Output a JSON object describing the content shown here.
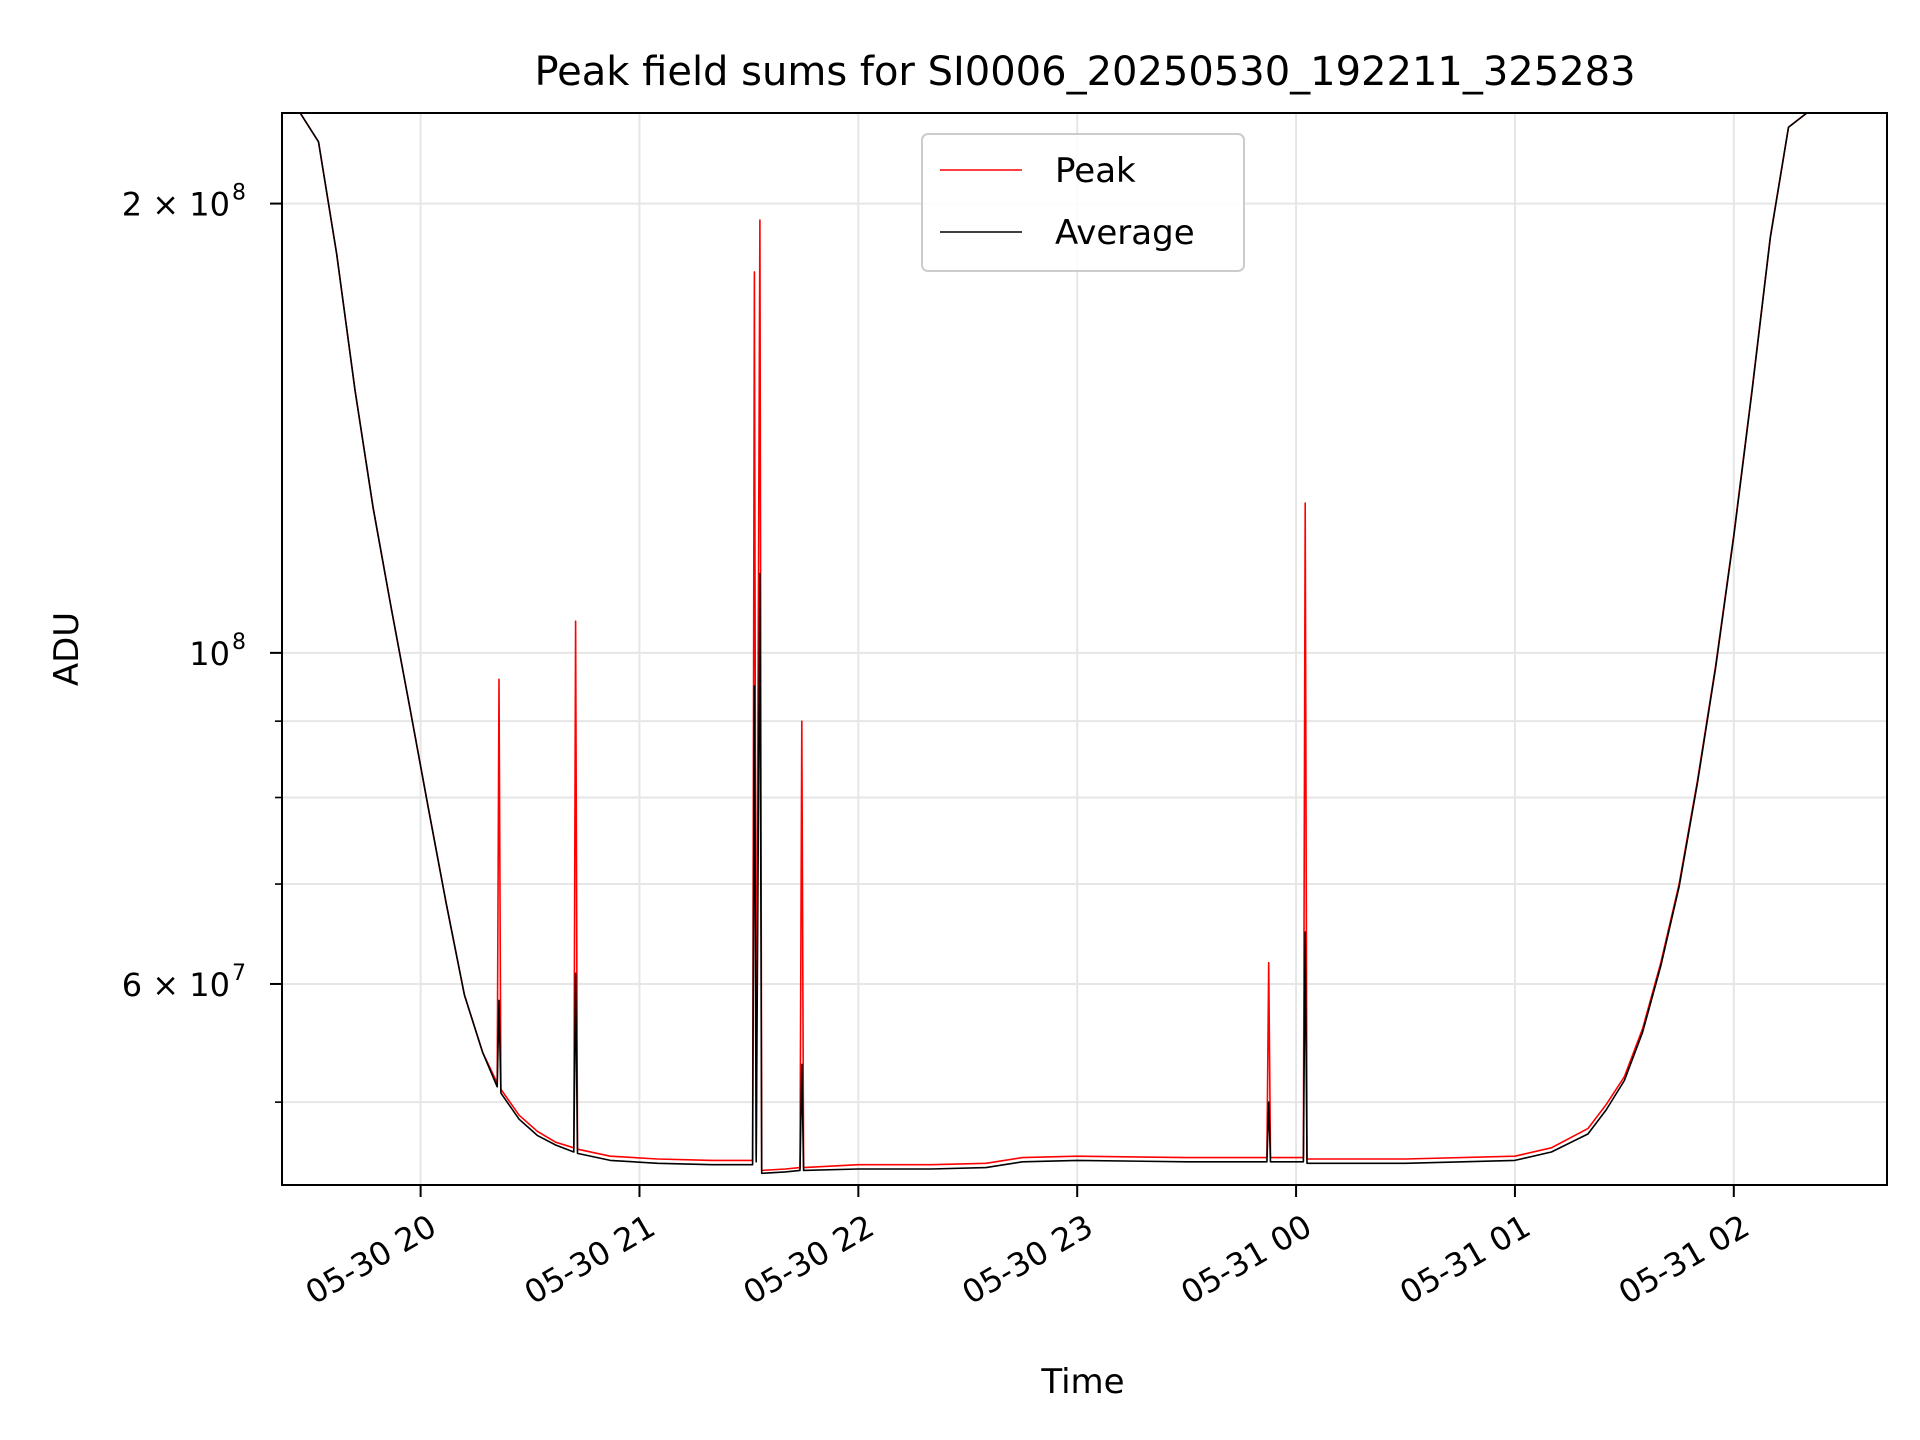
{
  "chart_data": {
    "type": "line",
    "title": "Peak field sums for SI0006_20250530_192211_325283",
    "xlabel": "Time",
    "ylabel": "ADU",
    "x_axis": {
      "type": "datetime",
      "range": [
        "2025-05-30T19:22",
        "2025-05-31T02:42"
      ],
      "ticks": [
        {
          "value": "2025-05-30T20:00",
          "label": "05-30 20"
        },
        {
          "value": "2025-05-30T21:00",
          "label": "05-30 21"
        },
        {
          "value": "2025-05-30T22:00",
          "label": "05-30 22"
        },
        {
          "value": "2025-05-30T23:00",
          "label": "05-30 23"
        },
        {
          "value": "2025-05-31T00:00",
          "label": "05-31 00"
        },
        {
          "value": "2025-05-31T01:00",
          "label": "05-31 01"
        },
        {
          "value": "2025-05-31T02:00",
          "label": "05-31 02"
        }
      ]
    },
    "y_axis": {
      "scale": "log",
      "range": [
        44000000,
        230000000
      ],
      "major_ticks": [
        {
          "value": 60000000,
          "label": "6 × 10",
          "exp": "7"
        },
        {
          "value": 100000000,
          "label": "10",
          "exp": "8"
        },
        {
          "value": 200000000,
          "label": "2 × 10",
          "exp": "8"
        }
      ],
      "minor_ticks": [
        50000000,
        70000000,
        80000000,
        90000000
      ]
    },
    "grid": true,
    "legend": {
      "placement": "upper-center"
    },
    "series": [
      {
        "name": "Peak",
        "color": "#ff0000",
        "points": [
          [
            "2025-05-30T19:22",
            230000000
          ],
          [
            "2025-05-30T19:27",
            230000000
          ],
          [
            "2025-05-30T19:32",
            220000000
          ],
          [
            "2025-05-30T19:37",
            185000000
          ],
          [
            "2025-05-30T19:42",
            150000000
          ],
          [
            "2025-05-30T19:47",
            125000000
          ],
          [
            "2025-05-30T19:52",
            107000000
          ],
          [
            "2025-05-30T19:57",
            92000000
          ],
          [
            "2025-05-30T20:02",
            79000000
          ],
          [
            "2025-05-30T20:07",
            68000000
          ],
          [
            "2025-05-30T20:12",
            59000000
          ],
          [
            "2025-05-30T20:17",
            54000000
          ],
          [
            "2025-05-30T20:21",
            51500000
          ],
          [
            "2025-05-30T20:21:30",
            96000000
          ],
          [
            "2025-05-30T20:22",
            51000000
          ],
          [
            "2025-05-30T20:27",
            49000000
          ],
          [
            "2025-05-30T20:32",
            47800000
          ],
          [
            "2025-05-30T20:37",
            47000000
          ],
          [
            "2025-05-30T20:42",
            46600000
          ],
          [
            "2025-05-30T20:42:30",
            105000000
          ],
          [
            "2025-05-30T20:43",
            46500000
          ],
          [
            "2025-05-30T20:52",
            46000000
          ],
          [
            "2025-05-30T21:05",
            45800000
          ],
          [
            "2025-05-30T21:20",
            45700000
          ],
          [
            "2025-05-30T21:31",
            45700000
          ],
          [
            "2025-05-30T21:31:30",
            180000000
          ],
          [
            "2025-05-30T21:32",
            46000000
          ],
          [
            "2025-05-30T21:33",
            195000000
          ],
          [
            "2025-05-30T21:33:30",
            45000000
          ],
          [
            "2025-05-30T21:40",
            45100000
          ],
          [
            "2025-05-30T21:44",
            45200000
          ],
          [
            "2025-05-30T21:44:30",
            90000000
          ],
          [
            "2025-05-30T21:45",
            45200000
          ],
          [
            "2025-05-30T22:00",
            45400000
          ],
          [
            "2025-05-30T22:20",
            45400000
          ],
          [
            "2025-05-30T22:35",
            45500000
          ],
          [
            "2025-05-30T22:45",
            45900000
          ],
          [
            "2025-05-30T23:00",
            46000000
          ],
          [
            "2025-05-30T23:30",
            45900000
          ],
          [
            "2025-05-30T23:50",
            45900000
          ],
          [
            "2025-05-30T23:52",
            45900000
          ],
          [
            "2025-05-30T23:52:30",
            62000000
          ],
          [
            "2025-05-30T23:53",
            45900000
          ],
          [
            "2025-05-31T00:02",
            45900000
          ],
          [
            "2025-05-31T00:02:30",
            126000000
          ],
          [
            "2025-05-31T00:03",
            45800000
          ],
          [
            "2025-05-31T00:30",
            45800000
          ],
          [
            "2025-05-31T01:00",
            46000000
          ],
          [
            "2025-05-31T01:10",
            46600000
          ],
          [
            "2025-05-31T01:20",
            48000000
          ],
          [
            "2025-05-31T01:25",
            49800000
          ],
          [
            "2025-05-31T01:30",
            52000000
          ],
          [
            "2025-05-31T01:35",
            56000000
          ],
          [
            "2025-05-31T01:40",
            62000000
          ],
          [
            "2025-05-31T01:45",
            70000000
          ],
          [
            "2025-05-31T01:50",
            82000000
          ],
          [
            "2025-05-31T01:55",
            98000000
          ],
          [
            "2025-05-31T02:00",
            120000000
          ],
          [
            "2025-05-31T02:05",
            150000000
          ],
          [
            "2025-05-31T02:10",
            190000000
          ],
          [
            "2025-05-31T02:15",
            225000000
          ],
          [
            "2025-05-31T02:20",
            230000000
          ],
          [
            "2025-05-31T02:42",
            230000000
          ]
        ]
      },
      {
        "name": "Average",
        "color": "#000000",
        "points": [
          [
            "2025-05-30T19:22",
            230000000
          ],
          [
            "2025-05-30T19:27",
            230000000
          ],
          [
            "2025-05-30T19:32",
            220000000
          ],
          [
            "2025-05-30T19:37",
            185000000
          ],
          [
            "2025-05-30T19:42",
            150000000
          ],
          [
            "2025-05-30T19:47",
            125000000
          ],
          [
            "2025-05-30T19:52",
            107000000
          ],
          [
            "2025-05-30T19:57",
            92000000
          ],
          [
            "2025-05-30T20:02",
            79000000
          ],
          [
            "2025-05-30T20:07",
            68000000
          ],
          [
            "2025-05-30T20:12",
            59000000
          ],
          [
            "2025-05-30T20:17",
            54000000
          ],
          [
            "2025-05-30T20:21",
            51200000
          ],
          [
            "2025-05-30T20:21:30",
            58500000
          ],
          [
            "2025-05-30T20:22",
            50700000
          ],
          [
            "2025-05-30T20:27",
            48700000
          ],
          [
            "2025-05-30T20:32",
            47500000
          ],
          [
            "2025-05-30T20:37",
            46800000
          ],
          [
            "2025-05-30T20:42",
            46300000
          ],
          [
            "2025-05-30T20:42:30",
            61000000
          ],
          [
            "2025-05-30T20:43",
            46200000
          ],
          [
            "2025-05-30T20:52",
            45700000
          ],
          [
            "2025-05-30T21:05",
            45500000
          ],
          [
            "2025-05-30T21:20",
            45400000
          ],
          [
            "2025-05-30T21:31",
            45400000
          ],
          [
            "2025-05-30T21:31:30",
            95000000
          ],
          [
            "2025-05-30T21:32",
            45600000
          ],
          [
            "2025-05-30T21:33",
            113000000
          ],
          [
            "2025-05-30T21:33:30",
            44800000
          ],
          [
            "2025-05-30T21:40",
            44900000
          ],
          [
            "2025-05-30T21:44",
            45000000
          ],
          [
            "2025-05-30T21:44:30",
            53000000
          ],
          [
            "2025-05-30T21:45",
            45000000
          ],
          [
            "2025-05-30T22:00",
            45100000
          ],
          [
            "2025-05-30T22:20",
            45100000
          ],
          [
            "2025-05-30T22:35",
            45200000
          ],
          [
            "2025-05-30T22:45",
            45600000
          ],
          [
            "2025-05-30T23:00",
            45700000
          ],
          [
            "2025-05-30T23:30",
            45600000
          ],
          [
            "2025-05-30T23:50",
            45600000
          ],
          [
            "2025-05-30T23:52",
            45600000
          ],
          [
            "2025-05-30T23:52:30",
            50000000
          ],
          [
            "2025-05-30T23:53",
            45600000
          ],
          [
            "2025-05-31T00:02",
            45600000
          ],
          [
            "2025-05-31T00:02:30",
            65000000
          ],
          [
            "2025-05-31T00:03",
            45500000
          ],
          [
            "2025-05-31T00:30",
            45500000
          ],
          [
            "2025-05-31T01:00",
            45700000
          ],
          [
            "2025-05-31T01:10",
            46300000
          ],
          [
            "2025-05-31T01:20",
            47600000
          ],
          [
            "2025-05-31T01:25",
            49400000
          ],
          [
            "2025-05-31T01:30",
            51700000
          ],
          [
            "2025-05-31T01:35",
            55700000
          ],
          [
            "2025-05-31T01:40",
            61700000
          ],
          [
            "2025-05-31T01:45",
            69700000
          ],
          [
            "2025-05-31T01:50",
            81700000
          ],
          [
            "2025-05-31T01:55",
            97700000
          ],
          [
            "2025-05-31T02:00",
            119700000
          ],
          [
            "2025-05-31T02:05",
            149700000
          ],
          [
            "2025-05-31T02:10",
            189700000
          ],
          [
            "2025-05-31T02:15",
            225000000
          ],
          [
            "2025-05-31T02:20",
            230000000
          ],
          [
            "2025-05-31T02:42",
            230000000
          ]
        ]
      }
    ]
  }
}
